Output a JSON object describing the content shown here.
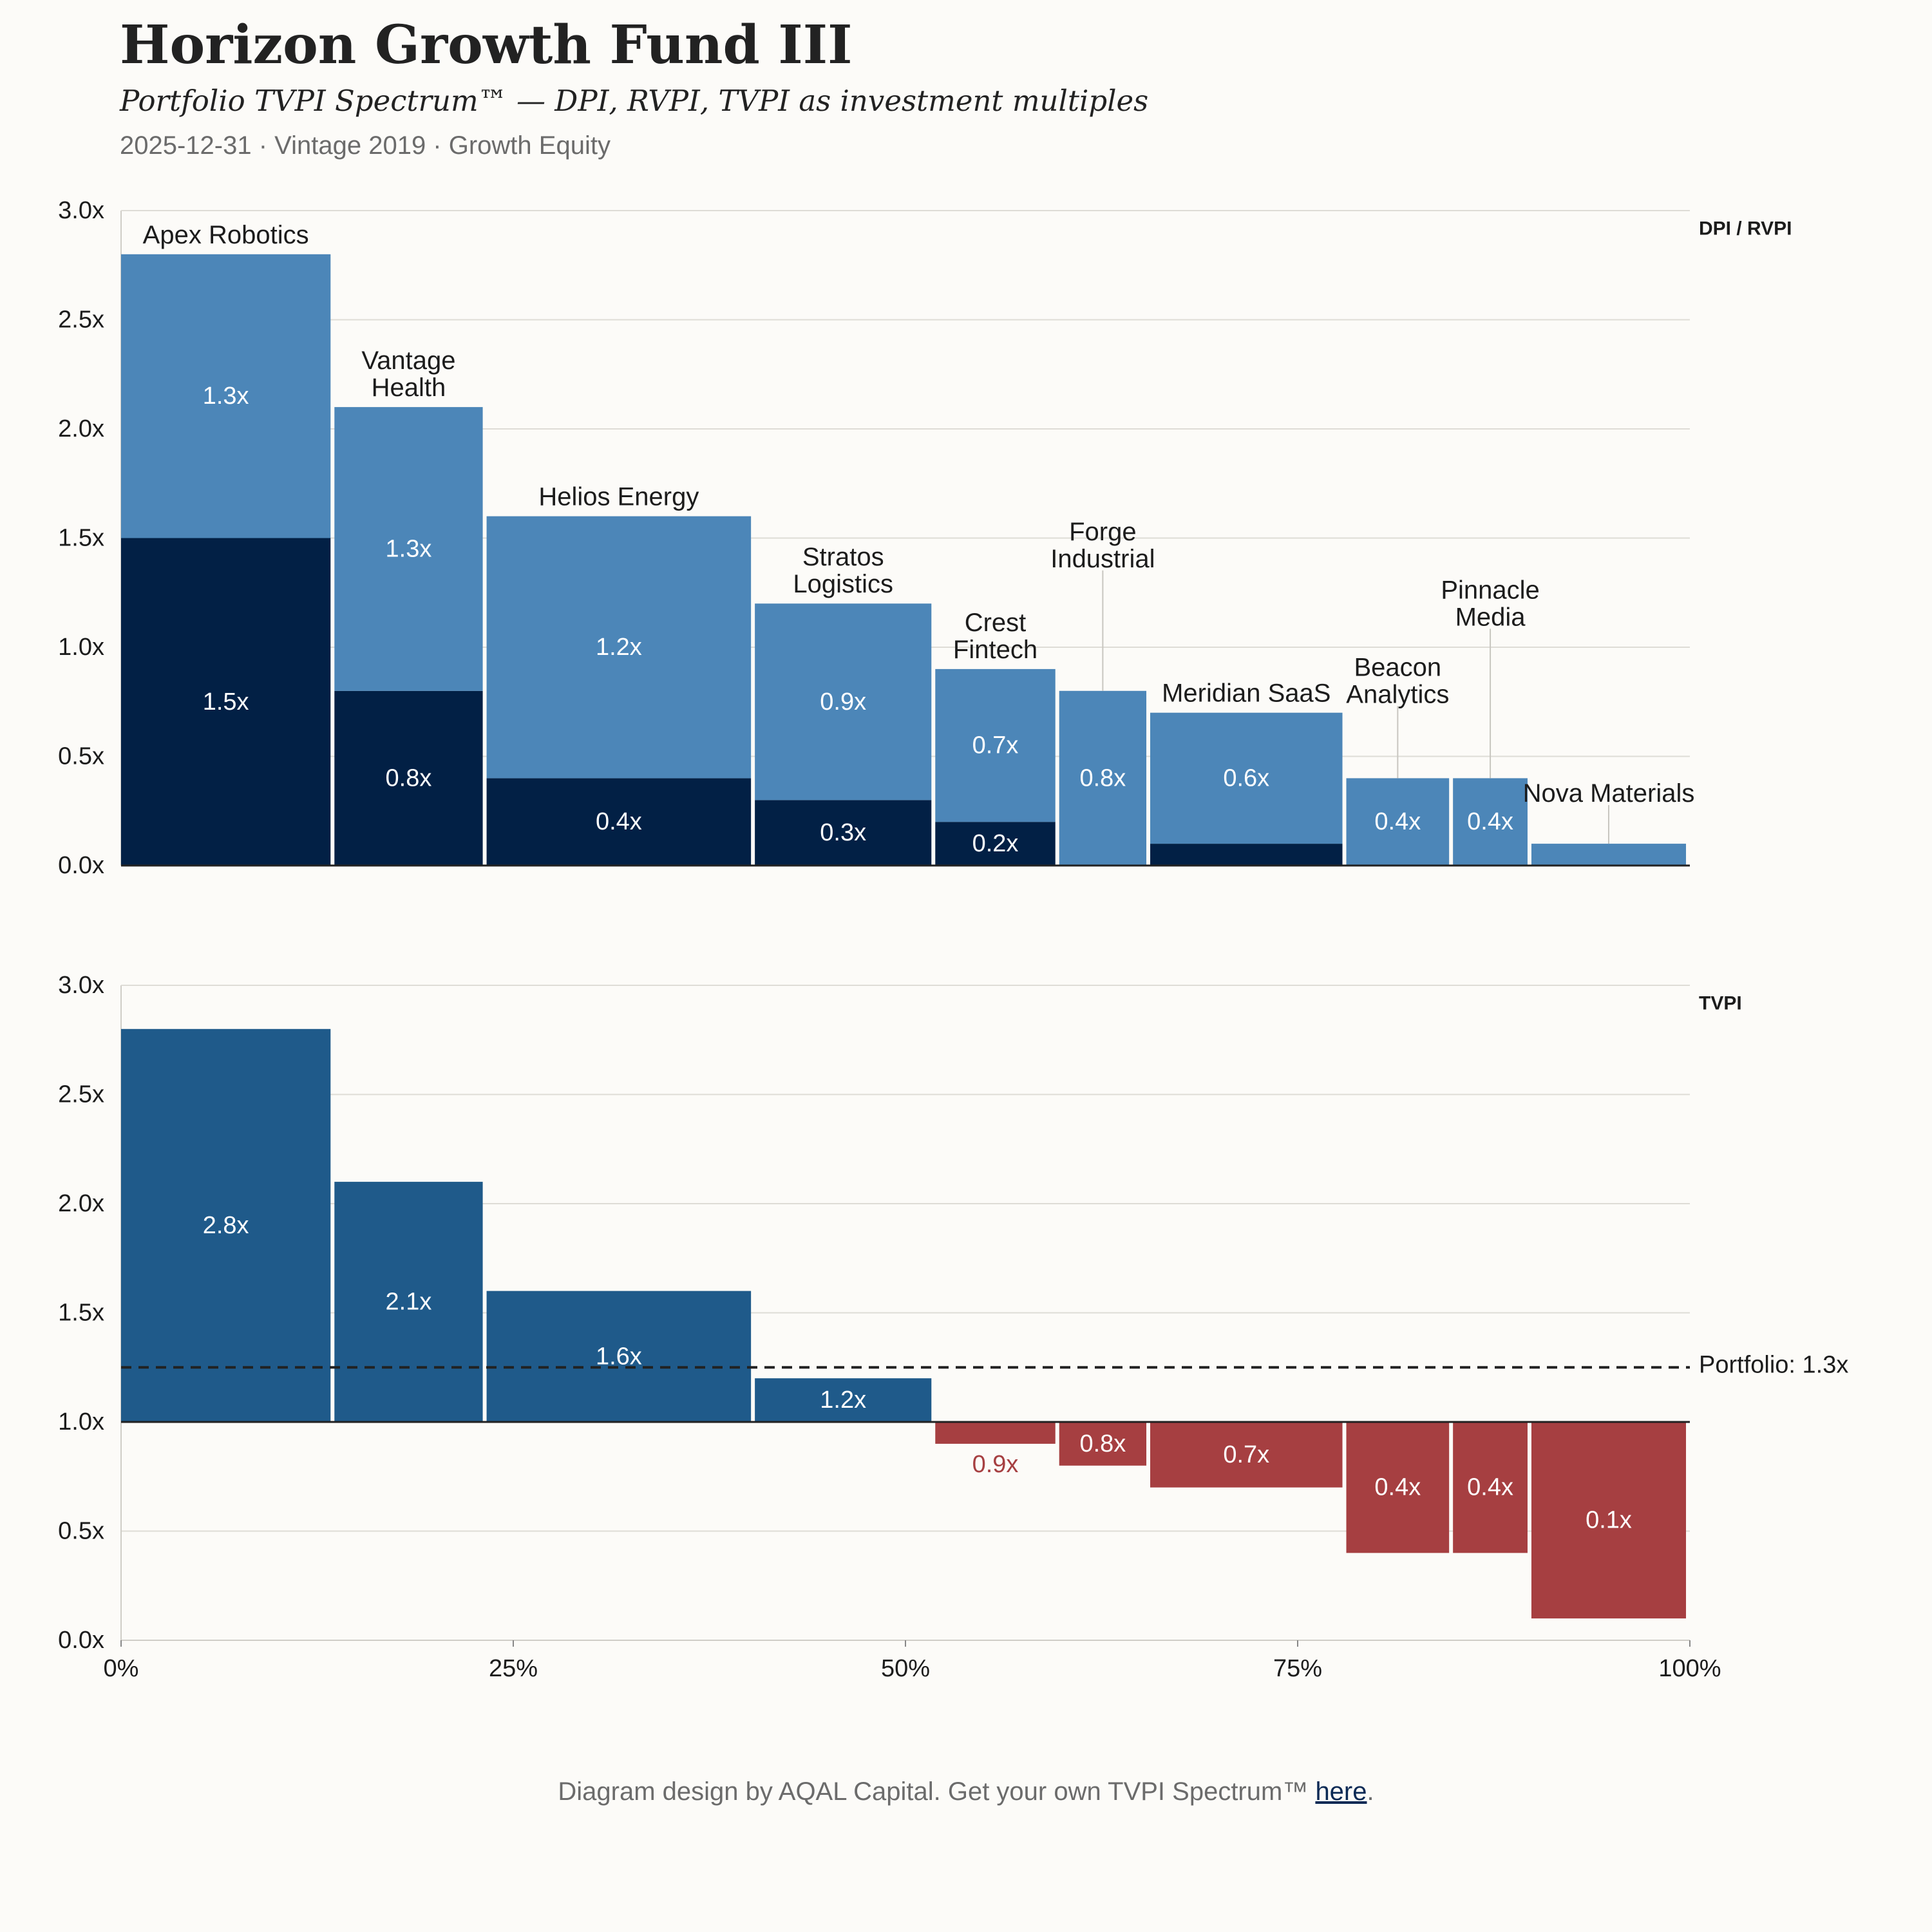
{
  "header": {
    "title": "Horizon Growth Fund III",
    "subtitle": "Portfolio TVPI Spectrum™ — DPI, RVPI, TVPI as investment multiples",
    "meta": "2025-12-31 · Vintage 2019 · Growth Equity"
  },
  "footer": {
    "text": "Diagram design by AQAL Capital. Get your own TVPI Spectrum™ ",
    "link_label": "here",
    "suffix": "."
  },
  "colors": {
    "background": "#fcfbf8",
    "dpi": "#022045",
    "rvpi": "#4c86b8",
    "tvpi_above": "#1f5a8a",
    "tvpi_below": "#a63f41",
    "grid": "#dedcd6",
    "text": "#1c1c1c",
    "muted": "#6b6b6b"
  },
  "chart_data": [
    {
      "type": "bar",
      "panel_label": "DPI / RVPI",
      "x": [
        0,
        13.6,
        23.3,
        40.4,
        51.9,
        59.8,
        65.6,
        78.1,
        84.9,
        89.9,
        100
      ],
      "x_tick_labels": [
        "0%",
        "25%",
        "50%",
        "75%",
        "100%"
      ],
      "xlim": [
        0,
        100
      ],
      "ylim": [
        0,
        3.0
      ],
      "y_tick_labels": [
        "0.0x",
        "0.5x",
        "1.0x",
        "1.5x",
        "2.0x",
        "2.5x",
        "3.0x"
      ],
      "grid": true,
      "categories": [
        "Apex Robotics",
        "Vantage Health",
        "Helios Energy",
        "Stratos Logistics",
        "Crest Fintech",
        "Forge Industrial",
        "Meridian SaaS",
        "Beacon Analytics",
        "Pinnacle Media",
        "Nova Materials"
      ],
      "series": [
        {
          "name": "DPI",
          "values": [
            1.5,
            0.8,
            0.4,
            0.3,
            0.2,
            0.0,
            0.1,
            0.0,
            0.0,
            0.0
          ],
          "labels": [
            "1.5x",
            "0.8x",
            "0.4x",
            "0.3x",
            "0.2x",
            "",
            "",
            "",
            "",
            ""
          ]
        },
        {
          "name": "RVPI",
          "values": [
            1.3,
            1.3,
            1.2,
            0.9,
            0.7,
            0.8,
            0.6,
            0.4,
            0.4,
            0.1
          ],
          "labels": [
            "1.3x",
            "1.3x",
            "1.2x",
            "0.9x",
            "0.7x",
            "0.8x",
            "0.6x",
            "0.4x",
            "0.4x",
            ""
          ]
        }
      ],
      "name_labels": [
        [
          "Apex Robotics"
        ],
        [
          "Vantage",
          "Health"
        ],
        [
          "Helios Energy"
        ],
        [
          "Stratos",
          "Logistics"
        ],
        [
          "Crest",
          "Fintech"
        ],
        [
          "Forge",
          "Industrial"
        ],
        [
          "Meridian SaaS"
        ],
        [
          "Beacon",
          "Analytics"
        ],
        [
          "Pinnacle",
          "Media"
        ],
        [
          "Nova Materials"
        ]
      ]
    },
    {
      "type": "bar",
      "panel_label": "TVPI",
      "x": [
        0,
        13.6,
        23.3,
        40.4,
        51.9,
        59.8,
        65.6,
        78.1,
        84.9,
        89.9,
        100
      ],
      "x_tick_labels": [
        "0%",
        "25%",
        "50%",
        "75%",
        "100%"
      ],
      "xlim": [
        0,
        100
      ],
      "ylim": [
        0,
        3.0
      ],
      "y_tick_labels": [
        "0.0x",
        "0.5x",
        "1.0x",
        "1.5x",
        "2.0x",
        "2.5x",
        "3.0x"
      ],
      "baseline": 1.0,
      "grid": true,
      "categories": [
        "Apex Robotics",
        "Vantage Health",
        "Helios Energy",
        "Stratos Logistics",
        "Crest Fintech",
        "Forge Industrial",
        "Meridian SaaS",
        "Beacon Analytics",
        "Pinnacle Media",
        "Nova Materials"
      ],
      "values": [
        2.8,
        2.1,
        1.6,
        1.2,
        0.9,
        0.8,
        0.7,
        0.4,
        0.4,
        0.1
      ],
      "labels": [
        "2.8x",
        "2.1x",
        "1.6x",
        "1.2x",
        "0.9x",
        "0.8x",
        "0.7x",
        "0.4x",
        "0.4x",
        "0.1x"
      ],
      "reference_line": {
        "value": 1.25,
        "label": "Portfolio: 1.3x"
      }
    }
  ]
}
